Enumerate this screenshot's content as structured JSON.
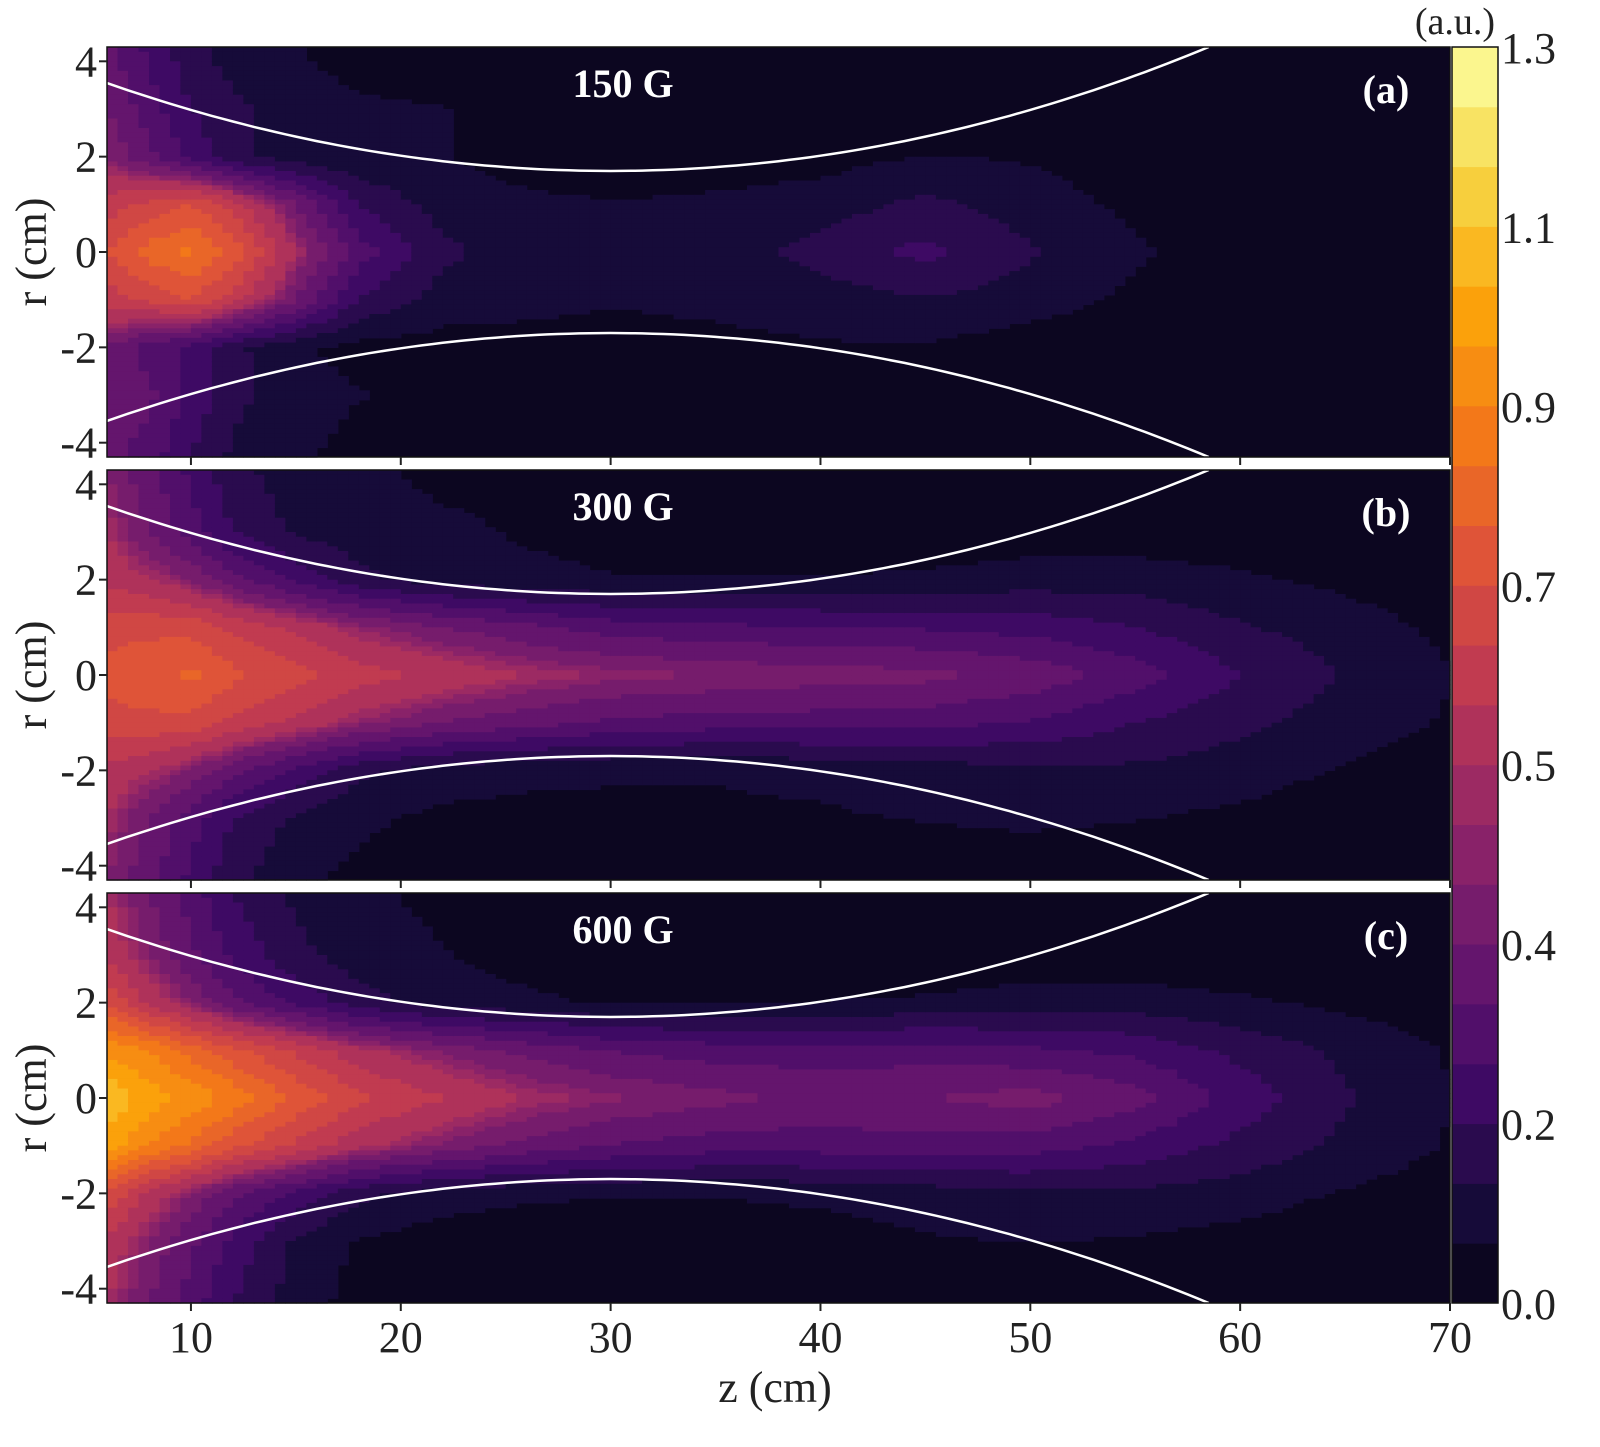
{
  "chart_data": {
    "type": "heatmap",
    "subtype": "filled-contour",
    "xlabel": "z (cm)",
    "ylabel": "r (cm)",
    "xlim": [
      6,
      70
    ],
    "ylim": [
      -4.3,
      4.3
    ],
    "xticks": [
      10,
      20,
      30,
      40,
      50,
      60,
      70
    ],
    "yticks": [
      4,
      2,
      0,
      -2,
      -4
    ],
    "ytick_labels": [
      "4",
      "2",
      "0",
      "-2",
      "-4"
    ],
    "grid_z": [
      6,
      8,
      10,
      12,
      15,
      18,
      22,
      26,
      30,
      35,
      40,
      45,
      50,
      55,
      60,
      65,
      70
    ],
    "grid_r": [
      4.3,
      3,
      2,
      1,
      0,
      -1,
      -2,
      -3,
      -4.3
    ],
    "colorbar": {
      "title": "(a.u.)",
      "tick_labels": [
        "1.3",
        "1.1",
        "0.9",
        "0.7",
        "0.5",
        "0.4",
        "0.2",
        "0.0"
      ],
      "tick_levels_index": [
        21,
        18,
        15,
        12,
        9,
        6,
        3,
        0
      ],
      "levels": [
        0,
        0.067,
        0.133,
        0.2,
        0.267,
        0.333,
        0.4,
        0.45,
        0.475,
        0.5,
        0.567,
        0.633,
        0.7,
        0.767,
        0.833,
        0.9,
        0.967,
        1.033,
        1.1,
        1.167,
        1.233,
        1.3
      ],
      "colormap": "inferno"
    },
    "field_line": {
      "z_min": 30,
      "r_min": 1.7,
      "curvature": 0.0032,
      "color": "#ffffff"
    },
    "panels": [
      {
        "tag": "(a)",
        "title": "150 G",
        "values": [
          [
            0.35,
            0.25,
            0.15,
            0.1,
            0.07,
            0.03,
            0.01,
            0,
            0,
            0,
            0,
            0,
            0,
            0,
            0,
            0,
            0
          ],
          [
            0.4,
            0.3,
            0.2,
            0.15,
            0.1,
            0.08,
            0.07,
            0.03,
            0,
            0,
            0,
            0,
            0,
            0,
            0,
            0,
            0
          ],
          [
            0.45,
            0.35,
            0.25,
            0.15,
            0.1,
            0.07,
            0.07,
            0.04,
            0.03,
            0.03,
            0.04,
            0.07,
            0.06,
            0.03,
            0,
            0,
            0
          ],
          [
            0.6,
            0.65,
            0.7,
            0.6,
            0.4,
            0.2,
            0.1,
            0.08,
            0.07,
            0.08,
            0.1,
            0.15,
            0.1,
            0.05,
            0,
            0,
            0
          ],
          [
            0.7,
            0.8,
            0.85,
            0.75,
            0.5,
            0.3,
            0.15,
            0.1,
            0.08,
            0.1,
            0.16,
            0.22,
            0.14,
            0.08,
            0.02,
            0,
            0
          ],
          [
            0.6,
            0.65,
            0.7,
            0.6,
            0.4,
            0.2,
            0.1,
            0.08,
            0.07,
            0.08,
            0.1,
            0.13,
            0.1,
            0.05,
            0,
            0,
            0
          ],
          [
            0.4,
            0.3,
            0.25,
            0.15,
            0.08,
            0.04,
            0.04,
            0.05,
            0.05,
            0.05,
            0.06,
            0.06,
            0.03,
            0.01,
            0,
            0,
            0
          ],
          [
            0.4,
            0.35,
            0.25,
            0.15,
            0.1,
            0.07,
            0.05,
            0.02,
            0,
            0,
            0,
            0,
            0,
            0,
            0,
            0,
            0
          ],
          [
            0.35,
            0.3,
            0.2,
            0.12,
            0.08,
            0.04,
            0.02,
            0,
            0,
            0,
            0,
            0,
            0,
            0,
            0,
            0,
            0
          ]
        ]
      },
      {
        "tag": "(b)",
        "title": "300 G",
        "values": [
          [
            0.45,
            0.35,
            0.25,
            0.15,
            0.1,
            0.08,
            0.05,
            0.05,
            0.03,
            0.02,
            0,
            0,
            0,
            0,
            0,
            0,
            0
          ],
          [
            0.5,
            0.4,
            0.3,
            0.2,
            0.12,
            0.1,
            0.08,
            0.06,
            0.05,
            0.04,
            0.02,
            0.02,
            0.03,
            0.03,
            0.02,
            0,
            0
          ],
          [
            0.55,
            0.5,
            0.45,
            0.35,
            0.25,
            0.15,
            0.1,
            0.08,
            0.07,
            0.07,
            0.07,
            0.08,
            0.1,
            0.1,
            0.08,
            0.05,
            0.02
          ],
          [
            0.68,
            0.68,
            0.68,
            0.62,
            0.55,
            0.47,
            0.4,
            0.35,
            0.3,
            0.28,
            0.27,
            0.26,
            0.24,
            0.2,
            0.14,
            0.1,
            0.05
          ],
          [
            0.72,
            0.75,
            0.78,
            0.72,
            0.66,
            0.6,
            0.55,
            0.5,
            0.47,
            0.45,
            0.43,
            0.42,
            0.38,
            0.3,
            0.2,
            0.13,
            0.07
          ],
          [
            0.68,
            0.68,
            0.68,
            0.62,
            0.55,
            0.47,
            0.4,
            0.36,
            0.32,
            0.3,
            0.3,
            0.29,
            0.26,
            0.2,
            0.15,
            0.1,
            0.06
          ],
          [
            0.55,
            0.5,
            0.45,
            0.35,
            0.25,
            0.15,
            0.1,
            0.08,
            0.07,
            0.07,
            0.08,
            0.1,
            0.12,
            0.12,
            0.1,
            0.06,
            0.03
          ],
          [
            0.5,
            0.4,
            0.3,
            0.2,
            0.12,
            0.08,
            0.05,
            0.05,
            0.06,
            0.06,
            0.06,
            0.07,
            0.08,
            0.07,
            0.05,
            0.02,
            0
          ],
          [
            0.45,
            0.35,
            0.25,
            0.15,
            0.08,
            0.05,
            0.03,
            0.02,
            0.02,
            0.02,
            0.02,
            0.02,
            0.02,
            0.01,
            0,
            0,
            0
          ]
        ]
      },
      {
        "tag": "(c)",
        "title": "600 G",
        "values": [
          [
            0.5,
            0.4,
            0.3,
            0.2,
            0.12,
            0.08,
            0.05,
            0.03,
            0,
            0,
            0,
            0,
            0,
            0,
            0,
            0,
            0
          ],
          [
            0.55,
            0.45,
            0.35,
            0.25,
            0.15,
            0.1,
            0.07,
            0.04,
            0.02,
            0.01,
            0,
            0,
            0.02,
            0.02,
            0.01,
            0,
            0
          ],
          [
            0.7,
            0.55,
            0.45,
            0.35,
            0.25,
            0.16,
            0.1,
            0.08,
            0.06,
            0.06,
            0.07,
            0.08,
            0.1,
            0.1,
            0.08,
            0.05,
            0.03
          ],
          [
            0.95,
            0.9,
            0.8,
            0.72,
            0.62,
            0.52,
            0.44,
            0.38,
            0.33,
            0.3,
            0.3,
            0.3,
            0.28,
            0.25,
            0.18,
            0.12,
            0.06
          ],
          [
            1.1,
            1.0,
            0.95,
            0.88,
            0.75,
            0.65,
            0.57,
            0.5,
            0.46,
            0.42,
            0.38,
            0.4,
            0.43,
            0.36,
            0.24,
            0.14,
            0.07
          ],
          [
            1.0,
            0.9,
            0.82,
            0.72,
            0.62,
            0.52,
            0.44,
            0.38,
            0.33,
            0.3,
            0.3,
            0.31,
            0.3,
            0.25,
            0.18,
            0.12,
            0.06
          ],
          [
            0.7,
            0.55,
            0.45,
            0.35,
            0.25,
            0.15,
            0.1,
            0.08,
            0.07,
            0.07,
            0.08,
            0.1,
            0.12,
            0.12,
            0.1,
            0.06,
            0.03
          ],
          [
            0.55,
            0.45,
            0.35,
            0.25,
            0.12,
            0.06,
            0.03,
            0.02,
            0.02,
            0.03,
            0.04,
            0.06,
            0.07,
            0.06,
            0.04,
            0.02,
            0
          ],
          [
            0.5,
            0.4,
            0.3,
            0.2,
            0.1,
            0.04,
            0.01,
            0,
            0,
            0,
            0,
            0,
            0,
            0,
            0,
            0,
            0
          ]
        ]
      }
    ]
  }
}
